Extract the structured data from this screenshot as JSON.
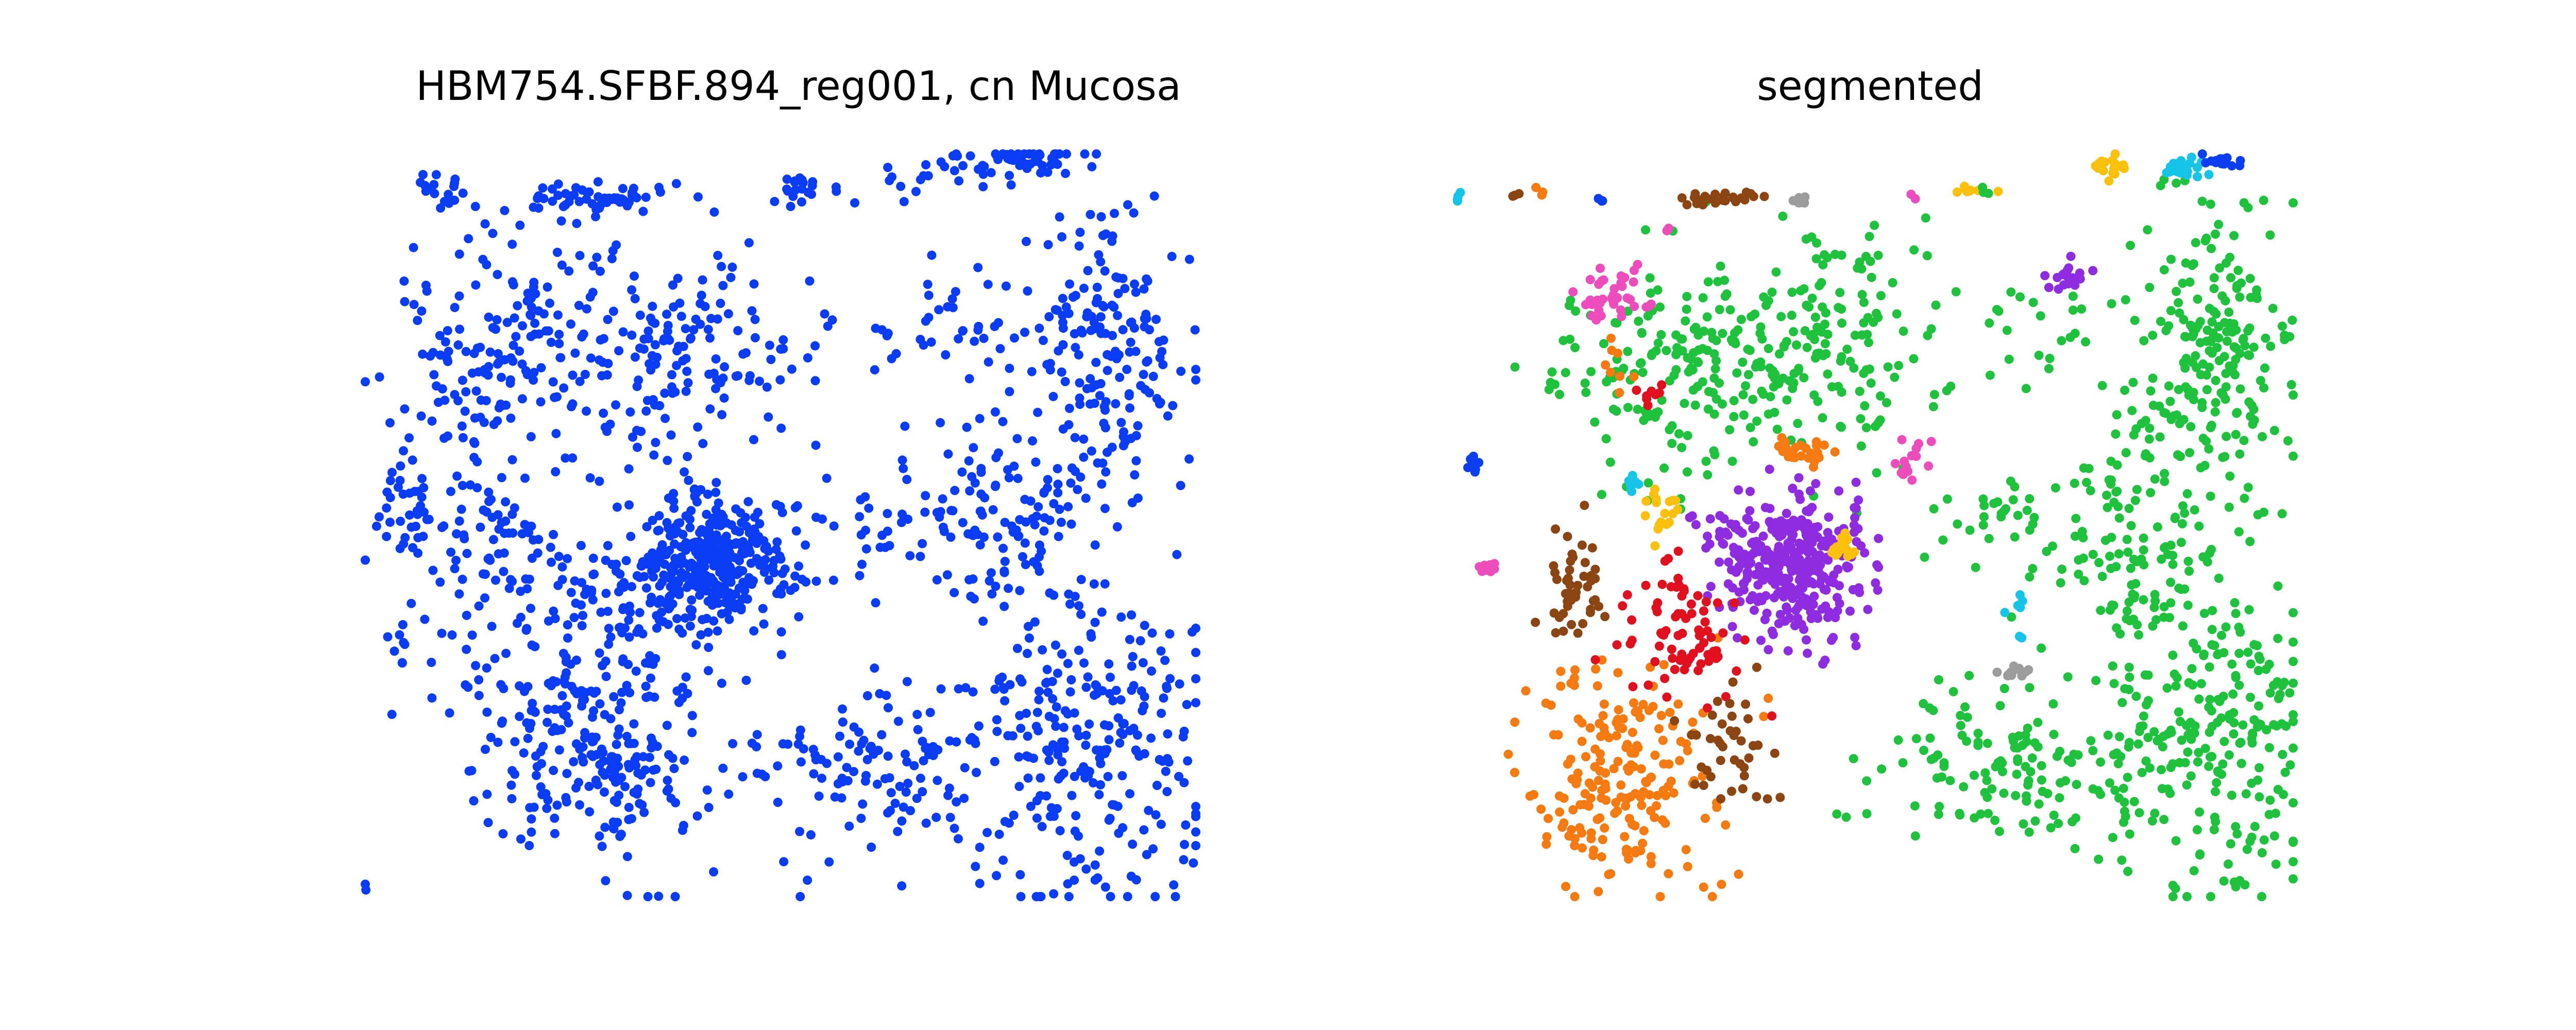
{
  "chart_data": [
    {
      "type": "scatter",
      "title": "HBM754.SFBF.894_reg001, cn Mucosa",
      "axes_visible": false,
      "grid": false,
      "legend": "none",
      "series": [
        {
          "color": "#0a3cf5",
          "clusters": [
            {
              "cx": 0.09,
              "cy": 0.95,
              "sx": 0.012,
              "sy": 0.012,
              "n": 18
            },
            {
              "cx": 0.28,
              "cy": 0.94,
              "sx": 0.045,
              "sy": 0.012,
              "n": 60
            },
            {
              "cx": 0.53,
              "cy": 0.95,
              "sx": 0.02,
              "sy": 0.01,
              "n": 20
            },
            {
              "cx": 0.78,
              "cy": 0.99,
              "sx": 0.05,
              "sy": 0.012,
              "n": 55
            },
            {
              "cx": 0.65,
              "cy": 0.96,
              "sx": 0.04,
              "sy": 0.015,
              "n": 12
            },
            {
              "cx": 0.17,
              "cy": 0.74,
              "sx": 0.07,
              "sy": 0.08,
              "n": 170
            },
            {
              "cx": 0.4,
              "cy": 0.73,
              "sx": 0.08,
              "sy": 0.07,
              "n": 150
            },
            {
              "cx": 0.7,
              "cy": 0.77,
              "sx": 0.06,
              "sy": 0.04,
              "n": 40
            },
            {
              "cx": 0.89,
              "cy": 0.73,
              "sx": 0.05,
              "sy": 0.09,
              "n": 170
            },
            {
              "cx": 0.05,
              "cy": 0.55,
              "sx": 0.02,
              "sy": 0.04,
              "n": 25
            },
            {
              "cx": 0.16,
              "cy": 0.48,
              "sx": 0.06,
              "sy": 0.06,
              "n": 100
            },
            {
              "cx": 0.42,
              "cy": 0.45,
              "sx": 0.045,
              "sy": 0.045,
              "n": 380
            },
            {
              "cx": 0.32,
              "cy": 0.4,
              "sx": 0.05,
              "sy": 0.04,
              "n": 70
            },
            {
              "cx": 0.64,
              "cy": 0.5,
              "sx": 0.06,
              "sy": 0.04,
              "n": 50
            },
            {
              "cx": 0.78,
              "cy": 0.5,
              "sx": 0.06,
              "sy": 0.08,
              "n": 120
            },
            {
              "cx": 0.27,
              "cy": 0.22,
              "sx": 0.08,
              "sy": 0.08,
              "n": 280
            },
            {
              "cx": 0.63,
              "cy": 0.18,
              "sx": 0.09,
              "sy": 0.06,
              "n": 130
            },
            {
              "cx": 0.88,
              "cy": 0.2,
              "sx": 0.07,
              "sy": 0.11,
              "n": 240
            },
            {
              "cx": 0.05,
              "cy": 0.35,
              "sx": 0.015,
              "sy": 0.06,
              "n": 12
            },
            {
              "cx": 0.0,
              "cy": 0.02,
              "sx": 0.005,
              "sy": 0.005,
              "n": 2
            }
          ]
        }
      ]
    },
    {
      "type": "scatter",
      "title": "segmented",
      "axes_visible": false,
      "grid": false,
      "legend": "none",
      "series": [
        {
          "color": "#1ec23c",
          "clusters": [
            {
              "cx": 0.27,
              "cy": 0.71,
              "sx": 0.08,
              "sy": 0.07,
              "n": 190
            },
            {
              "cx": 0.45,
              "cy": 0.75,
              "sx": 0.06,
              "sy": 0.08,
              "n": 140
            },
            {
              "cx": 0.71,
              "cy": 0.77,
              "sx": 0.06,
              "sy": 0.04,
              "n": 25
            },
            {
              "cx": 0.9,
              "cy": 0.72,
              "sx": 0.05,
              "sy": 0.1,
              "n": 200
            },
            {
              "cx": 0.82,
              "cy": 0.48,
              "sx": 0.06,
              "sy": 0.09,
              "n": 130
            },
            {
              "cx": 0.65,
              "cy": 0.5,
              "sx": 0.05,
              "sy": 0.03,
              "n": 35
            },
            {
              "cx": 0.66,
              "cy": 0.18,
              "sx": 0.08,
              "sy": 0.05,
              "n": 130
            },
            {
              "cx": 0.9,
              "cy": 0.2,
              "sx": 0.06,
              "sy": 0.11,
              "n": 230
            }
          ]
        },
        {
          "color": "#8e2de0",
          "clusters": [
            {
              "cx": 0.4,
              "cy": 0.45,
              "sx": 0.045,
              "sy": 0.045,
              "n": 380
            },
            {
              "cx": 0.73,
              "cy": 0.83,
              "sx": 0.015,
              "sy": 0.01,
              "n": 20
            }
          ]
        },
        {
          "color": "#f57a0f",
          "clusters": [
            {
              "cx": 0.19,
              "cy": 0.17,
              "sx": 0.06,
              "sy": 0.08,
              "n": 200
            },
            {
              "cx": 0.41,
              "cy": 0.6,
              "sx": 0.025,
              "sy": 0.01,
              "n": 25
            },
            {
              "cx": 0.18,
              "cy": 0.72,
              "sx": 0.01,
              "sy": 0.02,
              "n": 8
            },
            {
              "cx": 0.1,
              "cy": 0.95,
              "sx": 0.005,
              "sy": 0.005,
              "n": 3
            }
          ]
        },
        {
          "color": "#e0101e",
          "clusters": [
            {
              "cx": 0.27,
              "cy": 0.36,
              "sx": 0.04,
              "sy": 0.05,
              "n": 80
            },
            {
              "cx": 0.23,
              "cy": 0.68,
              "sx": 0.006,
              "sy": 0.012,
              "n": 8
            }
          ]
        },
        {
          "color": "#8b4513",
          "clusters": [
            {
              "cx": 0.14,
              "cy": 0.42,
              "sx": 0.02,
              "sy": 0.04,
              "n": 45
            },
            {
              "cx": 0.33,
              "cy": 0.2,
              "sx": 0.025,
              "sy": 0.04,
              "n": 40
            },
            {
              "cx": 0.31,
              "cy": 0.94,
              "sx": 0.025,
              "sy": 0.005,
              "n": 25
            },
            {
              "cx": 0.07,
              "cy": 0.94,
              "sx": 0.004,
              "sy": 0.004,
              "n": 3
            }
          ]
        },
        {
          "color": "#ec4dbb",
          "clusters": [
            {
              "cx": 0.18,
              "cy": 0.81,
              "sx": 0.03,
              "sy": 0.02,
              "n": 40
            },
            {
              "cx": 0.55,
              "cy": 0.58,
              "sx": 0.015,
              "sy": 0.02,
              "n": 15
            },
            {
              "cx": 0.04,
              "cy": 0.44,
              "sx": 0.01,
              "sy": 0.004,
              "n": 10
            },
            {
              "cx": 0.25,
              "cy": 0.89,
              "sx": 0.005,
              "sy": 0.005,
              "n": 2
            },
            {
              "cx": 0.54,
              "cy": 0.94,
              "sx": 0.004,
              "sy": 0.004,
              "n": 2
            }
          ]
        },
        {
          "color": "#fbc10a",
          "clusters": [
            {
              "cx": 0.25,
              "cy": 0.52,
              "sx": 0.01,
              "sy": 0.02,
              "n": 18
            },
            {
              "cx": 0.46,
              "cy": 0.47,
              "sx": 0.008,
              "sy": 0.01,
              "n": 22
            },
            {
              "cx": 0.78,
              "cy": 0.98,
              "sx": 0.01,
              "sy": 0.008,
              "n": 22
            },
            {
              "cx": 0.61,
              "cy": 0.95,
              "sx": 0.008,
              "sy": 0.004,
              "n": 8
            }
          ]
        },
        {
          "color": "#16c4e8",
          "clusters": [
            {
              "cx": 0.87,
              "cy": 0.98,
              "sx": 0.012,
              "sy": 0.007,
              "n": 20
            },
            {
              "cx": 0.21,
              "cy": 0.56,
              "sx": 0.004,
              "sy": 0.01,
              "n": 7
            },
            {
              "cx": 0.67,
              "cy": 0.39,
              "sx": 0.006,
              "sy": 0.012,
              "n": 7
            },
            {
              "cx": 0.0,
              "cy": 0.94,
              "sx": 0.004,
              "sy": 0.005,
              "n": 4
            }
          ]
        },
        {
          "color": "#0b3ef0",
          "clusters": [
            {
              "cx": 0.92,
              "cy": 0.99,
              "sx": 0.012,
              "sy": 0.005,
              "n": 18
            },
            {
              "cx": 0.02,
              "cy": 0.58,
              "sx": 0.004,
              "sy": 0.006,
              "n": 7
            },
            {
              "cx": 0.17,
              "cy": 0.94,
              "sx": 0.004,
              "sy": 0.004,
              "n": 3
            }
          ]
        },
        {
          "color": "#9c9c9c",
          "clusters": [
            {
              "cx": 0.66,
              "cy": 0.3,
              "sx": 0.012,
              "sy": 0.006,
              "n": 14
            },
            {
              "cx": 0.41,
              "cy": 0.94,
              "sx": 0.005,
              "sy": 0.004,
              "n": 6
            }
          ]
        },
        {
          "color": "#1ec23c",
          "clusters": [
            {
              "cx": 0.63,
              "cy": 0.95,
              "sx": 0.003,
              "sy": 0.003,
              "n": 3
            }
          ]
        }
      ]
    }
  ]
}
